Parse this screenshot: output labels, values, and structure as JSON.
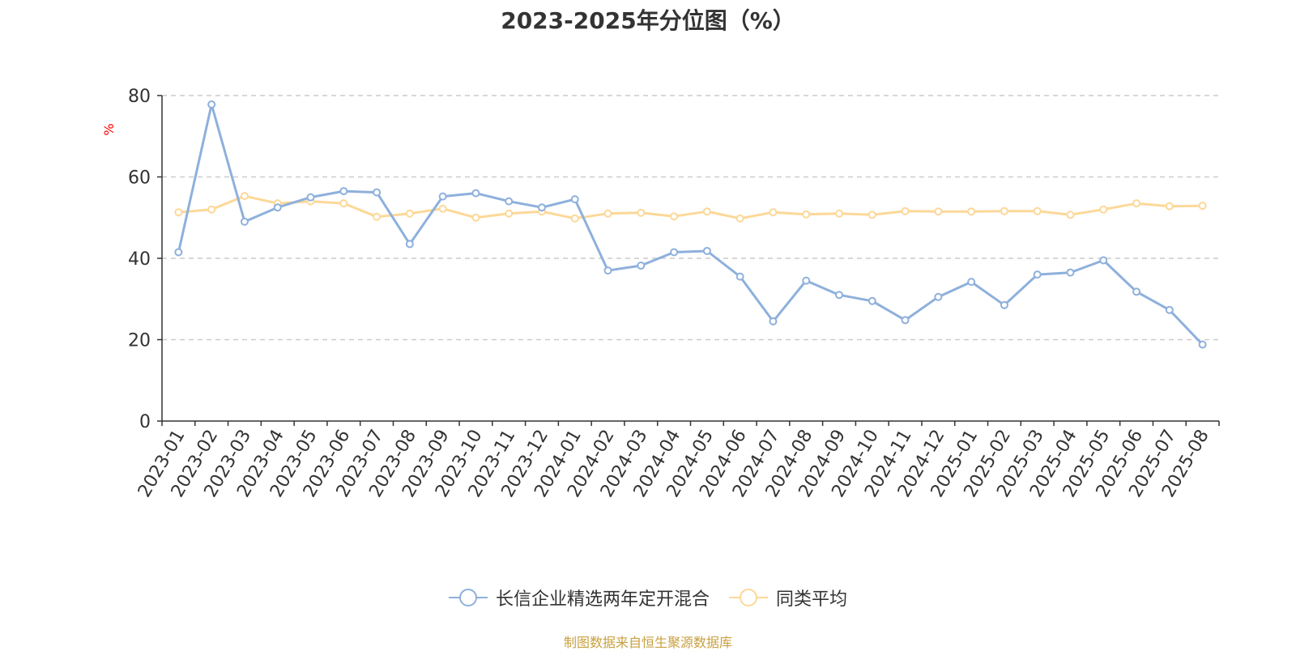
{
  "chart_data": {
    "type": "line",
    "title": "2023-2025年分位图（%）",
    "ylabel": "%",
    "xlabel": "",
    "ylim": [
      0,
      80
    ],
    "yticks": [
      0,
      20,
      40,
      60,
      80
    ],
    "grid": true,
    "legend_position": "bottom",
    "categories": [
      "2023-01",
      "2023-02",
      "2023-03",
      "2023-04",
      "2023-05",
      "2023-06",
      "2023-07",
      "2023-08",
      "2023-09",
      "2023-10",
      "2023-11",
      "2023-12",
      "2024-01",
      "2024-02",
      "2024-03",
      "2024-04",
      "2024-05",
      "2024-06",
      "2024-07",
      "2024-08",
      "2024-09",
      "2024-10",
      "2024-11",
      "2024-12",
      "2025-01",
      "2025-02",
      "2025-03",
      "2025-04",
      "2025-05",
      "2025-06",
      "2025-07",
      "2025-08"
    ],
    "series": [
      {
        "name": "长信企业精选两年定开混合",
        "color": "#8eb0dc",
        "values": [
          41.5,
          77.8,
          49.0,
          52.5,
          55.0,
          56.5,
          56.2,
          43.5,
          55.2,
          56.0,
          54.0,
          52.5,
          54.5,
          37.0,
          38.2,
          41.5,
          41.8,
          35.5,
          24.5,
          34.5,
          31.0,
          29.5,
          24.8,
          30.5,
          34.2,
          28.5,
          36.0,
          36.5,
          39.5,
          31.8,
          27.3,
          18.8
        ]
      },
      {
        "name": "同类平均",
        "color": "#fcd898",
        "values": [
          51.3,
          52.0,
          55.3,
          53.5,
          54.0,
          53.5,
          50.2,
          51.0,
          52.2,
          50.0,
          51.0,
          51.5,
          49.8,
          51.0,
          51.2,
          50.3,
          51.5,
          49.8,
          51.3,
          50.8,
          51.0,
          50.7,
          51.6,
          51.5,
          51.5,
          51.6,
          51.6,
          50.7,
          52.0,
          53.5,
          52.8,
          52.9
        ]
      }
    ]
  },
  "legend": {
    "items": [
      "长信企业精选两年定开混合",
      "同类平均"
    ]
  },
  "source_text": "制图数据来自恒生聚源数据库"
}
